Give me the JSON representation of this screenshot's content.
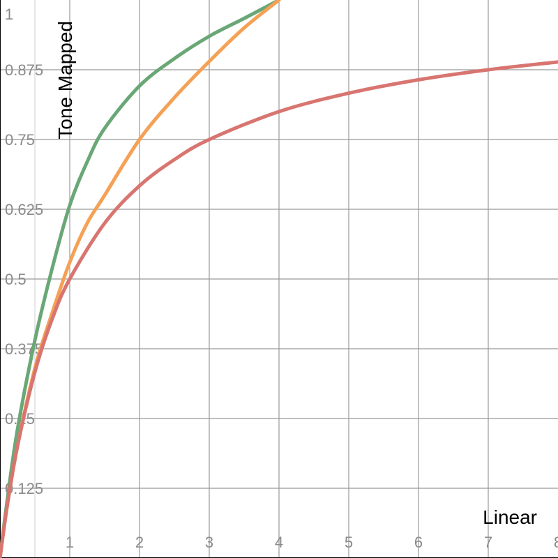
{
  "chart_data": {
    "type": "line",
    "xlabel": "Linear",
    "ylabel": "Tone Mapped",
    "xlim": [
      0,
      8
    ],
    "ylim": [
      0,
      1
    ],
    "x_ticks": [
      "1",
      "2",
      "3",
      "4",
      "5",
      "6",
      "7",
      "8"
    ],
    "y_ticks": [
      "0.125",
      "0.25",
      "0.375",
      "0.5",
      "0.625",
      "0.75",
      "0.875",
      "1"
    ],
    "grid": true,
    "x_minor_grid": [
      0.5
    ],
    "series": [
      {
        "color": "#6aa776",
        "x": [
          0,
          0.1,
          0.25,
          0.5,
          0.75,
          1,
          1.25,
          1.5,
          2,
          2.5,
          3,
          3.5,
          4
        ],
        "y": [
          0,
          0.1,
          0.23,
          0.39,
          0.52,
          0.632,
          0.71,
          0.77,
          0.846,
          0.895,
          0.935,
          0.967,
          1.0
        ]
      },
      {
        "color": "#f5a155",
        "x": [
          0,
          0.1,
          0.25,
          0.5,
          0.75,
          1,
          1.25,
          1.5,
          2,
          2.5,
          3,
          3.5,
          4
        ],
        "y": [
          0,
          0.09,
          0.2,
          0.34,
          0.44,
          0.53,
          0.6,
          0.65,
          0.75,
          0.825,
          0.89,
          0.95,
          1.0
        ]
      },
      {
        "color": "#d87570",
        "x": [
          0,
          0.1,
          0.25,
          0.5,
          0.75,
          1,
          1.5,
          2,
          2.5,
          3,
          4,
          5,
          6,
          7,
          8
        ],
        "y": [
          0,
          0.091,
          0.2,
          0.333,
          0.429,
          0.5,
          0.6,
          0.667,
          0.714,
          0.75,
          0.8,
          0.833,
          0.857,
          0.875,
          0.889
        ]
      }
    ]
  }
}
